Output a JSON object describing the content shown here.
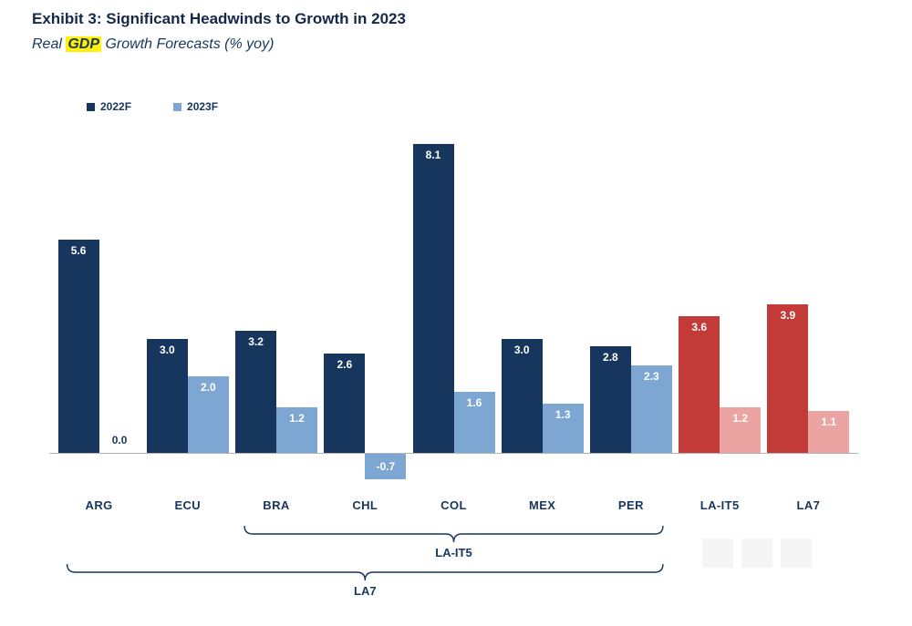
{
  "header": {
    "title": "Exhibit 3: Significant Headwinds to Growth in 2023",
    "subtitle_prefix": "Real ",
    "subtitle_highlight": "GDP",
    "subtitle_suffix": " Growth Forecasts (% yoy)"
  },
  "legend": [
    {
      "label": "2022F",
      "color": "#17365D"
    },
    {
      "label": "2023F",
      "color": "#7EA6D3"
    }
  ],
  "chart_data": {
    "type": "bar",
    "title": "Exhibit 3: Significant Headwinds to Growth in 2023",
    "subtitle": "Real GDP Growth Forecasts (% yoy)",
    "categories": [
      "ARG",
      "ECU",
      "BRA",
      "CHL",
      "COL",
      "MEX",
      "PER",
      "LA-IT5",
      "LA7"
    ],
    "series": [
      {
        "name": "2022F",
        "values": [
          5.6,
          3.0,
          3.2,
          2.6,
          8.1,
          3.0,
          2.8,
          3.6,
          3.9
        ]
      },
      {
        "name": "2023F",
        "values": [
          0.0,
          2.0,
          1.2,
          -0.7,
          1.6,
          1.3,
          2.3,
          1.2,
          1.1
        ]
      }
    ],
    "aggregate_categories": [
      "LA-IT5",
      "LA7"
    ],
    "colors": {
      "series_country": [
        "#17365D",
        "#7EA6D3"
      ],
      "series_aggregate": [
        "#C23B38",
        "#ECA4A2"
      ],
      "value_label_inside": "#FFFFFF",
      "value_label_outside": "#17365D",
      "axis_line": "#B3B3B3",
      "text": "#17365D",
      "highlight": "#FFF100"
    },
    "ylim": [
      -1.2,
      8.7
    ],
    "grid": false,
    "legend_position": "top-left",
    "value_label_format": "0.0",
    "xlabel": "",
    "ylabel": "",
    "annotations": [
      {
        "label": "LA-IT5",
        "from": "BRA",
        "to": "PER"
      },
      {
        "label": "LA7",
        "from": "ARG",
        "to": "PER"
      }
    ]
  }
}
